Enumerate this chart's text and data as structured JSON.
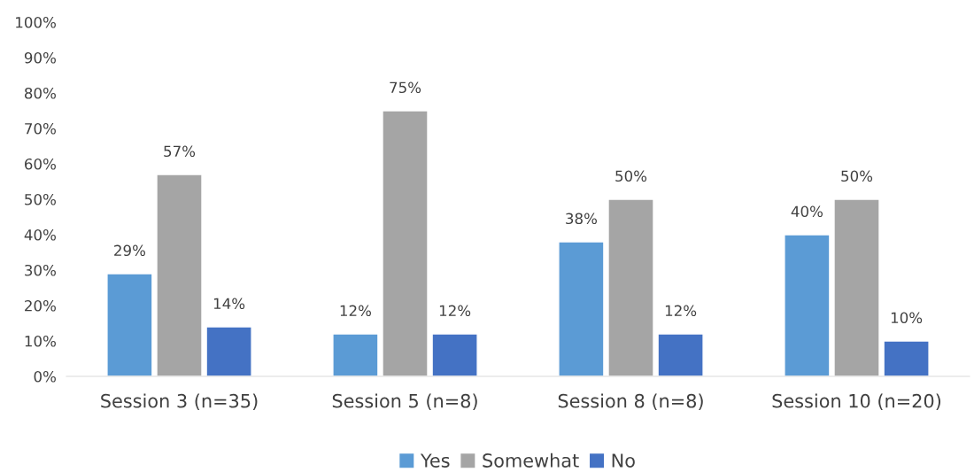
{
  "chart_data": {
    "type": "bar",
    "categories": [
      "Session 3 (n=35)",
      "Session 5 (n=8)",
      "Session 8 (n=8)",
      "Session 10 (n=20)"
    ],
    "series": [
      {
        "name": "Yes",
        "color": "#5b9bd5",
        "values": [
          29,
          12,
          38,
          40
        ],
        "value_labels": [
          "29%",
          "12%",
          "38%",
          "40%"
        ]
      },
      {
        "name": "Somewhat",
        "color": "#a5a5a5",
        "values": [
          57,
          75,
          50,
          50
        ],
        "value_labels": [
          "57%",
          "75%",
          "50%",
          "50%"
        ]
      },
      {
        "name": "No",
        "color": "#4472c4",
        "values": [
          14,
          12,
          12,
          10
        ],
        "value_labels": [
          "14%",
          "12%",
          "12%",
          "10%"
        ]
      }
    ],
    "ylim": [
      0,
      100
    ],
    "yticks": [
      {
        "value": 0,
        "label": "0%"
      },
      {
        "value": 10,
        "label": "10%"
      },
      {
        "value": 20,
        "label": "20%"
      },
      {
        "value": 30,
        "label": "30%"
      },
      {
        "value": 40,
        "label": "40%"
      },
      {
        "value": 50,
        "label": "50%"
      },
      {
        "value": 60,
        "label": "60%"
      },
      {
        "value": 70,
        "label": "70%"
      },
      {
        "value": 80,
        "label": "80%"
      },
      {
        "value": 90,
        "label": "90%"
      },
      {
        "value": 100,
        "label": "100%"
      }
    ],
    "grid": false,
    "legend": "bottom"
  }
}
